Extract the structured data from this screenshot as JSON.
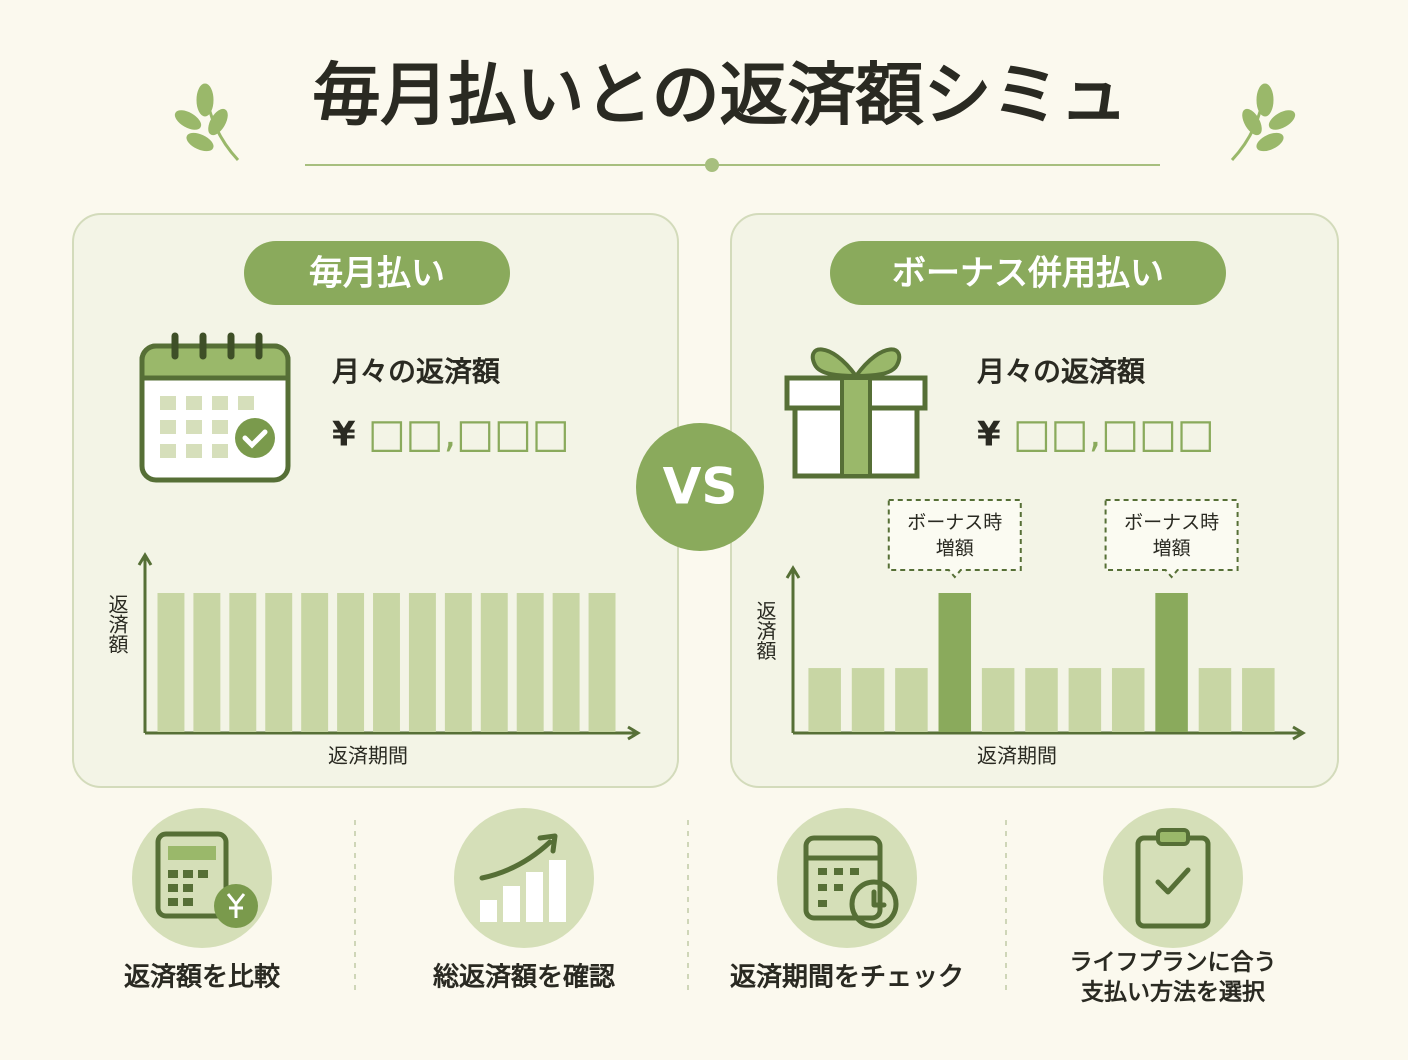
{
  "title": "毎月払いとの返済額シミュ",
  "vs": "VS",
  "panels": [
    {
      "label": "毎月払い",
      "heading": "月々の返済額",
      "currency": "¥",
      "amount": "□□,□□□",
      "y_label": "返済額",
      "x_label": "返済期間",
      "bars": [
        100,
        100,
        100,
        100,
        100,
        100,
        100,
        100,
        100,
        100,
        100,
        100,
        100
      ]
    },
    {
      "label": "ボーナス併用払い",
      "heading": "月々の返済額",
      "currency": "¥",
      "amount": "□□,□□□",
      "y_label": "返済額",
      "x_label": "返済期間",
      "bars": [
        46,
        46,
        46,
        100,
        46,
        46,
        46,
        46,
        100,
        46,
        46
      ],
      "callouts": [
        [
          "ボーナス時",
          "増額"
        ],
        [
          "ボーナス時",
          "増額"
        ]
      ]
    }
  ],
  "features": [
    {
      "lines": [
        "返済額を比較"
      ]
    },
    {
      "lines": [
        "総返済額を確認"
      ]
    },
    {
      "lines": [
        "返済期間をチェック"
      ]
    },
    {
      "lines": [
        "ライフプランに合う",
        "支払い方法を選択"
      ]
    }
  ]
}
